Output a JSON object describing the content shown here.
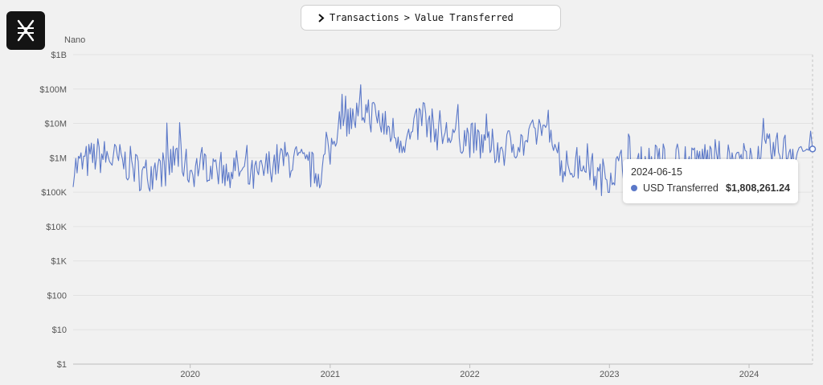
{
  "header": {
    "breadcrumb": [
      "Transactions",
      "Value Transferred"
    ],
    "separator": ">"
  },
  "logo": {
    "icon": "nano-logo-icon"
  },
  "colors": {
    "background": "#f1f1f1",
    "series": "#5b78c8",
    "grid": "#e2e2e2",
    "axis_text": "#555555"
  },
  "chart_data": {
    "type": "line",
    "title": "",
    "series_label": "Nano",
    "ylabel": "",
    "xlabel": "",
    "yscale": "log",
    "ylim": [
      1,
      1000000000
    ],
    "y_ticks": [
      {
        "value": 1000000000,
        "label": "$1B"
      },
      {
        "value": 100000000,
        "label": "$100M"
      },
      {
        "value": 10000000,
        "label": "$10M"
      },
      {
        "value": 1000000,
        "label": "$1M"
      },
      {
        "value": 100000,
        "label": "$100K"
      },
      {
        "value": 10000,
        "label": "$10K"
      },
      {
        "value": 1000,
        "label": "$1K"
      },
      {
        "value": 100,
        "label": "$100"
      },
      {
        "value": 10,
        "label": "$10"
      },
      {
        "value": 1,
        "label": "$1"
      }
    ],
    "xlim": [
      "2019-03-01",
      "2024-06-15"
    ],
    "x_ticks": [
      {
        "date": "2020-01-01",
        "label": "2020"
      },
      {
        "date": "2021-01-01",
        "label": "2021"
      },
      {
        "date": "2022-01-01",
        "label": "2022"
      },
      {
        "date": "2023-01-01",
        "label": "2023"
      },
      {
        "date": "2024-01-01",
        "label": "2024"
      }
    ],
    "grid": "horizontal",
    "series": [
      {
        "name": "USD Transferred",
        "x": [
          "2019-03-01",
          "2019-04-01",
          "2019-05-01",
          "2019-06-01",
          "2019-07-01",
          "2019-08-01",
          "2019-09-01",
          "2019-10-01",
          "2019-11-01",
          "2019-12-01",
          "2020-01-01",
          "2020-02-01",
          "2020-03-01",
          "2020-04-01",
          "2020-05-01",
          "2020-06-01",
          "2020-07-01",
          "2020-08-01",
          "2020-09-01",
          "2020-10-01",
          "2020-11-01",
          "2020-12-01",
          "2021-01-01",
          "2021-02-01",
          "2021-03-01",
          "2021-04-01",
          "2021-05-01",
          "2021-06-01",
          "2021-07-01",
          "2021-08-01",
          "2021-09-01",
          "2021-10-01",
          "2021-11-01",
          "2021-12-01",
          "2022-01-01",
          "2022-02-01",
          "2022-03-01",
          "2022-04-01",
          "2022-05-01",
          "2022-06-01",
          "2022-07-01",
          "2022-08-01",
          "2022-09-01",
          "2022-10-01",
          "2022-11-01",
          "2022-12-01",
          "2023-01-01",
          "2023-02-01",
          "2023-03-01",
          "2023-04-01",
          "2023-05-01",
          "2023-06-01",
          "2023-07-01",
          "2023-08-01",
          "2023-09-01",
          "2023-10-01",
          "2023-11-01",
          "2023-12-01",
          "2024-01-01",
          "2024-02-01",
          "2024-03-01",
          "2024-04-01",
          "2024-05-01",
          "2024-06-15"
        ],
        "values": [
          500000,
          700000,
          1200000,
          1000000,
          800000,
          600000,
          300000,
          450000,
          500000,
          1200000,
          400000,
          700000,
          600000,
          450000,
          500000,
          250000,
          300000,
          700000,
          900000,
          800000,
          500000,
          350000,
          1500000,
          30000000,
          12000000,
          25000000,
          15000000,
          7000000,
          4000000,
          3500000,
          20000000,
          6000000,
          4500000,
          5000000,
          3500000,
          2500000,
          2000000,
          1800000,
          3000000,
          2500000,
          7000000,
          9000000,
          500000,
          600000,
          900000,
          250000,
          350000,
          600000,
          400000,
          700000,
          800000,
          500000,
          1200000,
          700000,
          1000000,
          1000000,
          900000,
          700000,
          1000000,
          1400000,
          1500000,
          1700000,
          1800000,
          1808261.24
        ]
      }
    ],
    "tooltip": {
      "date": "2024-06-15",
      "series": "USD Transferred",
      "value": "$1,808,261.24"
    }
  }
}
